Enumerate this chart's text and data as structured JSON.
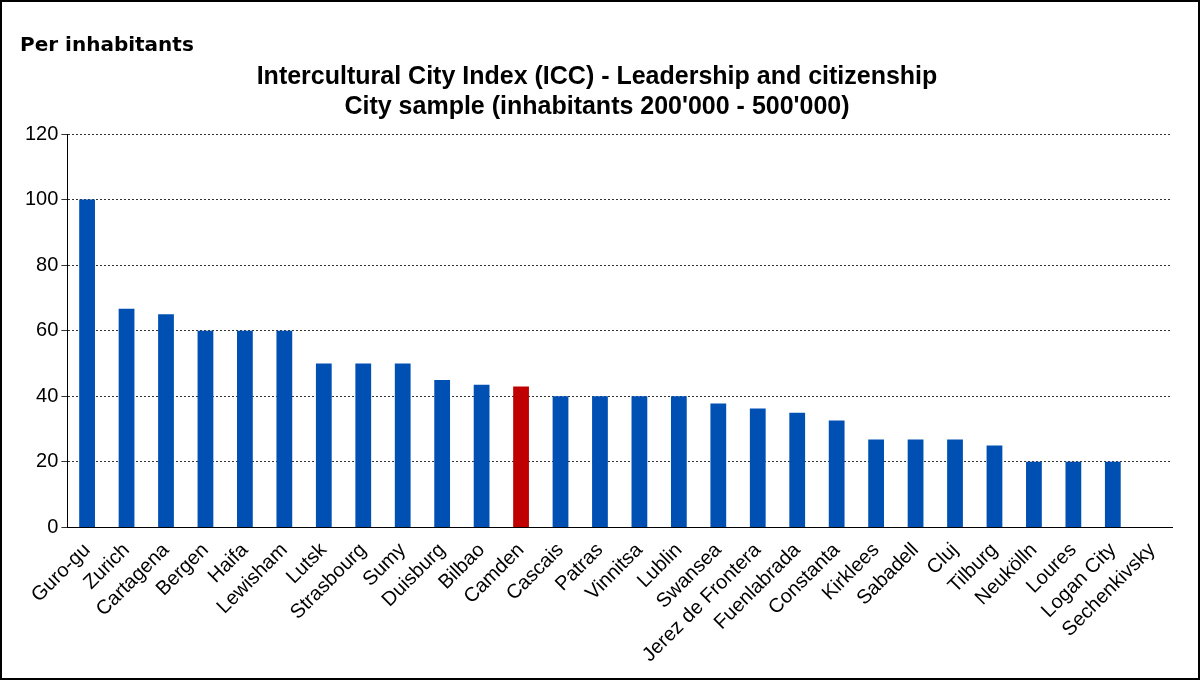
{
  "chart_data": {
    "type": "bar",
    "subtitle": "Per inhabitants",
    "title": "Intercultural City Index (ICC) - Leadership and citizenship\nCity sample (inhabitants 200'000 - 500'000)",
    "categories": [
      "Guro-gu",
      "Zurich",
      "Cartagena",
      "Bergen",
      "Haifa",
      "Lewisham",
      "Lutsk",
      "Strasbourg",
      "Sumy",
      "Duisburg",
      "Bilbao",
      "Camden",
      "Cascais",
      "Patras",
      "Vinnitsa",
      "Lublin",
      "Swansea",
      "Jerez de Frontera",
      "Fuenlabrada",
      "Constanta",
      "Kirklees",
      "Sabadell",
      "Cluj",
      "Tilburg",
      "Neukölln",
      "Loures",
      "Logan City",
      "Sechenkivsky"
    ],
    "values": [
      100,
      66.7,
      65,
      60,
      60,
      60,
      50,
      50,
      50,
      45,
      43.5,
      43,
      40,
      40,
      40,
      40,
      37.8,
      36.3,
      35,
      32.6,
      26.8,
      26.8,
      26.8,
      25,
      20,
      20,
      20,
      null
    ],
    "colors": [
      "#0050b4",
      "#0050b4",
      "#0050b4",
      "#0050b4",
      "#0050b4",
      "#0050b4",
      "#0050b4",
      "#0050b4",
      "#0050b4",
      "#0050b4",
      "#0050b4",
      "#c00000",
      "#0050b4",
      "#0050b4",
      "#0050b4",
      "#0050b4",
      "#0050b4",
      "#0050b4",
      "#0050b4",
      "#0050b4",
      "#0050b4",
      "#0050b4",
      "#0050b4",
      "#0050b4",
      "#0050b4",
      "#0050b4",
      "#0050b4",
      "#0050b4"
    ],
    "ylim": [
      0,
      120
    ],
    "yticks": [
      0,
      20,
      40,
      60,
      80,
      100,
      120
    ],
    "grid": "y",
    "legend": false
  }
}
